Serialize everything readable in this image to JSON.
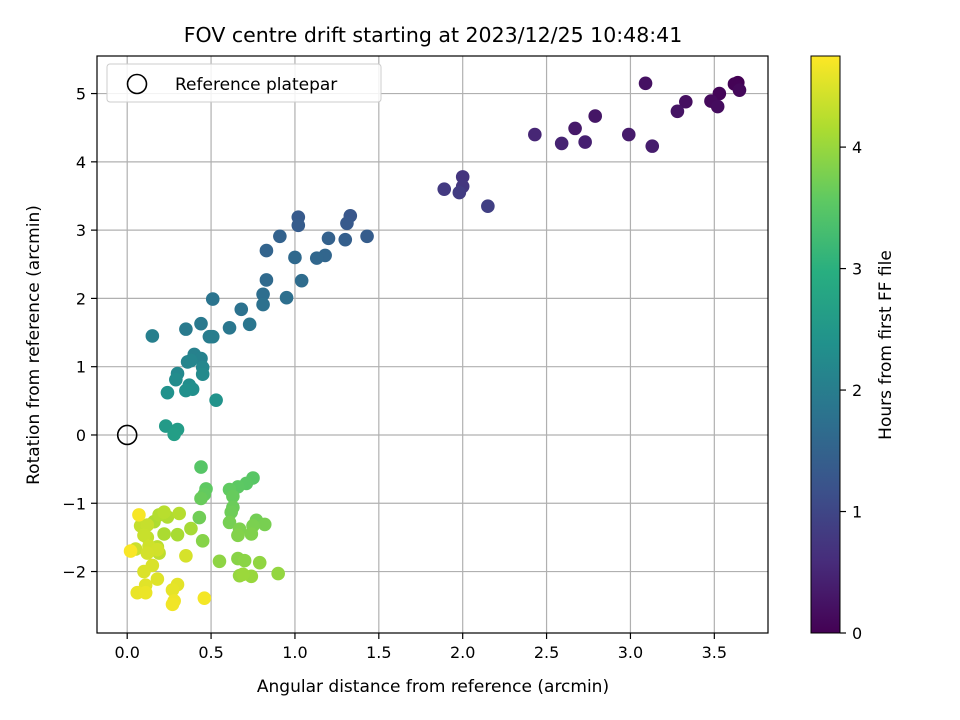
{
  "chart_data": {
    "type": "scatter",
    "title": "FOV centre drift starting at 2023/12/25 10:48:41",
    "xlabel": "Angular distance from reference (arcmin)",
    "ylabel": "Rotation from reference (arcmin)",
    "xlim": [
      -0.18,
      3.82
    ],
    "ylim": [
      -2.9,
      5.55
    ],
    "x_ticks": [
      0.0,
      0.5,
      1.0,
      1.5,
      2.0,
      2.5,
      3.0,
      3.5
    ],
    "x_tick_labels": [
      "0.0",
      "0.5",
      "1.0",
      "1.5",
      "2.0",
      "2.5",
      "3.0",
      "3.5"
    ],
    "y_ticks": [
      -2,
      -1,
      0,
      1,
      2,
      3,
      4,
      5
    ],
    "y_tick_labels": [
      "−2",
      "−1",
      "0",
      "1",
      "2",
      "3",
      "4",
      "5"
    ],
    "grid": true,
    "legend": {
      "placement": "top-left",
      "entries": [
        "Reference platepar"
      ]
    },
    "reference_point": {
      "x": 0.0,
      "y": 0.0
    },
    "colorbar": {
      "label": "Hours from first FF file",
      "range": [
        0,
        4.75
      ],
      "ticks": [
        0,
        1,
        2,
        3,
        4
      ],
      "tick_labels": [
        "0",
        "1",
        "2",
        "3",
        "4"
      ],
      "colormap": "viridis"
    },
    "points": [
      {
        "x": 3.64,
        "y": 5.16,
        "c": 0.0
      },
      {
        "x": 3.62,
        "y": 5.14,
        "c": 0.03
      },
      {
        "x": 3.53,
        "y": 5.0,
        "c": 0.06
      },
      {
        "x": 3.65,
        "y": 5.05,
        "c": 0.09
      },
      {
        "x": 3.48,
        "y": 4.89,
        "c": 0.12
      },
      {
        "x": 3.52,
        "y": 4.81,
        "c": 0.15
      },
      {
        "x": 3.33,
        "y": 4.88,
        "c": 0.19
      },
      {
        "x": 3.09,
        "y": 5.15,
        "c": 0.22
      },
      {
        "x": 3.28,
        "y": 4.74,
        "c": 0.25
      },
      {
        "x": 2.79,
        "y": 4.67,
        "c": 0.28
      },
      {
        "x": 2.67,
        "y": 4.49,
        "c": 0.32
      },
      {
        "x": 2.99,
        "y": 4.4,
        "c": 0.35
      },
      {
        "x": 3.13,
        "y": 4.23,
        "c": 0.38
      },
      {
        "x": 2.73,
        "y": 4.29,
        "c": 0.42
      },
      {
        "x": 2.59,
        "y": 4.27,
        "c": 0.46
      },
      {
        "x": 2.43,
        "y": 4.4,
        "c": 0.5
      },
      {
        "x": 2.0,
        "y": 3.78,
        "c": 0.72
      },
      {
        "x": 2.0,
        "y": 3.64,
        "c": 0.76
      },
      {
        "x": 1.89,
        "y": 3.6,
        "c": 0.8
      },
      {
        "x": 1.98,
        "y": 3.55,
        "c": 0.84
      },
      {
        "x": 2.15,
        "y": 3.35,
        "c": 0.88
      },
      {
        "x": 1.33,
        "y": 3.21,
        "c": 1.28
      },
      {
        "x": 1.31,
        "y": 3.1,
        "c": 1.31
      },
      {
        "x": 1.02,
        "y": 3.19,
        "c": 1.34
      },
      {
        "x": 1.02,
        "y": 3.07,
        "c": 1.37
      },
      {
        "x": 1.43,
        "y": 2.91,
        "c": 1.4
      },
      {
        "x": 1.3,
        "y": 2.86,
        "c": 1.43
      },
      {
        "x": 1.2,
        "y": 2.88,
        "c": 1.46
      },
      {
        "x": 0.91,
        "y": 2.91,
        "c": 1.49
      },
      {
        "x": 0.83,
        "y": 2.7,
        "c": 1.52
      },
      {
        "x": 1.18,
        "y": 2.63,
        "c": 1.55
      },
      {
        "x": 1.13,
        "y": 2.59,
        "c": 1.58
      },
      {
        "x": 1.0,
        "y": 2.6,
        "c": 1.61
      },
      {
        "x": 0.83,
        "y": 2.27,
        "c": 1.64
      },
      {
        "x": 1.04,
        "y": 2.26,
        "c": 1.67
      },
      {
        "x": 0.81,
        "y": 2.06,
        "c": 1.7
      },
      {
        "x": 0.95,
        "y": 2.01,
        "c": 1.73
      },
      {
        "x": 0.81,
        "y": 1.91,
        "c": 1.76
      },
      {
        "x": 0.68,
        "y": 1.84,
        "c": 1.79
      },
      {
        "x": 0.51,
        "y": 1.99,
        "c": 1.82
      },
      {
        "x": 0.73,
        "y": 1.62,
        "c": 1.85
      },
      {
        "x": 0.61,
        "y": 1.57,
        "c": 1.88
      },
      {
        "x": 0.44,
        "y": 1.63,
        "c": 1.91
      },
      {
        "x": 0.35,
        "y": 1.55,
        "c": 1.94
      },
      {
        "x": 0.49,
        "y": 1.44,
        "c": 1.97
      },
      {
        "x": 0.51,
        "y": 1.44,
        "c": 2.0
      },
      {
        "x": 0.15,
        "y": 1.45,
        "c": 2.03
      },
      {
        "x": 0.4,
        "y": 1.18,
        "c": 2.06
      },
      {
        "x": 0.44,
        "y": 1.12,
        "c": 2.09
      },
      {
        "x": 0.36,
        "y": 1.07,
        "c": 2.12
      },
      {
        "x": 0.38,
        "y": 1.09,
        "c": 2.15
      },
      {
        "x": 0.45,
        "y": 0.99,
        "c": 2.18
      },
      {
        "x": 0.3,
        "y": 0.9,
        "c": 2.21
      },
      {
        "x": 0.45,
        "y": 0.89,
        "c": 2.24
      },
      {
        "x": 0.29,
        "y": 0.81,
        "c": 2.27
      },
      {
        "x": 0.37,
        "y": 0.73,
        "c": 2.3
      },
      {
        "x": 0.39,
        "y": 0.67,
        "c": 2.33
      },
      {
        "x": 0.35,
        "y": 0.65,
        "c": 2.36
      },
      {
        "x": 0.24,
        "y": 0.62,
        "c": 2.39
      },
      {
        "x": 0.53,
        "y": 0.51,
        "c": 2.42
      },
      {
        "x": 0.23,
        "y": 0.13,
        "c": 2.55
      },
      {
        "x": 0.3,
        "y": 0.08,
        "c": 2.6
      },
      {
        "x": 0.28,
        "y": 0.01,
        "c": 2.65
      },
      {
        "x": 0.44,
        "y": -0.47,
        "c": 3.48
      },
      {
        "x": 0.75,
        "y": -0.63,
        "c": 3.5
      },
      {
        "x": 0.71,
        "y": -0.71,
        "c": 3.52
      },
      {
        "x": 0.66,
        "y": -0.76,
        "c": 3.54
      },
      {
        "x": 0.47,
        "y": -0.79,
        "c": 3.56
      },
      {
        "x": 0.61,
        "y": -0.8,
        "c": 3.58
      },
      {
        "x": 0.46,
        "y": -0.87,
        "c": 3.6
      },
      {
        "x": 0.63,
        "y": -0.9,
        "c": 3.62
      },
      {
        "x": 0.44,
        "y": -0.93,
        "c": 3.64
      },
      {
        "x": 0.63,
        "y": -1.06,
        "c": 3.66
      },
      {
        "x": 0.62,
        "y": -1.13,
        "c": 3.68
      },
      {
        "x": 0.43,
        "y": -1.21,
        "c": 3.7
      },
      {
        "x": 0.77,
        "y": -1.25,
        "c": 3.72
      },
      {
        "x": 0.61,
        "y": -1.28,
        "c": 3.74
      },
      {
        "x": 0.82,
        "y": -1.31,
        "c": 3.76
      },
      {
        "x": 0.75,
        "y": -1.33,
        "c": 3.78
      },
      {
        "x": 0.67,
        "y": -1.38,
        "c": 3.8
      },
      {
        "x": 0.74,
        "y": -1.45,
        "c": 3.82
      },
      {
        "x": 0.66,
        "y": -1.47,
        "c": 3.84
      },
      {
        "x": 0.45,
        "y": -1.55,
        "c": 3.86
      },
      {
        "x": 0.66,
        "y": -1.81,
        "c": 3.88
      },
      {
        "x": 0.7,
        "y": -1.84,
        "c": 3.9
      },
      {
        "x": 0.55,
        "y": -1.85,
        "c": 3.92
      },
      {
        "x": 0.79,
        "y": -1.87,
        "c": 3.94
      },
      {
        "x": 0.9,
        "y": -2.03,
        "c": 3.96
      },
      {
        "x": 0.67,
        "y": -2.06,
        "c": 3.98
      },
      {
        "x": 0.74,
        "y": -2.07,
        "c": 4.0
      },
      {
        "x": 0.69,
        "y": -2.04,
        "c": 4.02
      },
      {
        "x": 0.38,
        "y": -1.37,
        "c": 4.1
      },
      {
        "x": 0.3,
        "y": -1.46,
        "c": 4.12
      },
      {
        "x": 0.22,
        "y": -1.45,
        "c": 4.14
      },
      {
        "x": 0.16,
        "y": -1.27,
        "c": 4.16
      },
      {
        "x": 0.24,
        "y": -1.2,
        "c": 4.18
      },
      {
        "x": 0.19,
        "y": -1.17,
        "c": 4.2
      },
      {
        "x": 0.31,
        "y": -1.15,
        "c": 4.22
      },
      {
        "x": 0.22,
        "y": -1.13,
        "c": 4.24
      },
      {
        "x": 0.18,
        "y": -1.64,
        "c": 4.26
      },
      {
        "x": 0.19,
        "y": -1.73,
        "c": 4.28
      },
      {
        "x": 0.12,
        "y": -1.5,
        "c": 4.3
      },
      {
        "x": 0.08,
        "y": -1.33,
        "c": 4.32
      },
      {
        "x": 0.12,
        "y": -1.32,
        "c": 4.34
      },
      {
        "x": 0.1,
        "y": -1.47,
        "c": 4.36
      },
      {
        "x": 0.05,
        "y": -1.67,
        "c": 4.38
      },
      {
        "x": 0.13,
        "y": -1.63,
        "c": 4.4
      },
      {
        "x": 0.18,
        "y": -1.68,
        "c": 4.42
      },
      {
        "x": 0.12,
        "y": -1.73,
        "c": 4.44
      },
      {
        "x": 0.35,
        "y": -1.77,
        "c": 4.46
      },
      {
        "x": 0.15,
        "y": -1.91,
        "c": 4.48
      },
      {
        "x": 0.1,
        "y": -2.0,
        "c": 4.5
      },
      {
        "x": 0.18,
        "y": -2.11,
        "c": 4.52
      },
      {
        "x": 0.11,
        "y": -2.2,
        "c": 4.54
      },
      {
        "x": 0.3,
        "y": -2.19,
        "c": 4.56
      },
      {
        "x": 0.27,
        "y": -2.27,
        "c": 4.58
      },
      {
        "x": 0.06,
        "y": -2.31,
        "c": 4.6
      },
      {
        "x": 0.11,
        "y": -2.31,
        "c": 4.62
      },
      {
        "x": 0.28,
        "y": -2.43,
        "c": 4.64
      },
      {
        "x": 0.27,
        "y": -2.48,
        "c": 4.66
      },
      {
        "x": 0.46,
        "y": -2.39,
        "c": 4.68
      },
      {
        "x": 0.07,
        "y": -1.17,
        "c": 4.7
      },
      {
        "x": 0.02,
        "y": -1.7,
        "c": 4.72
      }
    ]
  }
}
